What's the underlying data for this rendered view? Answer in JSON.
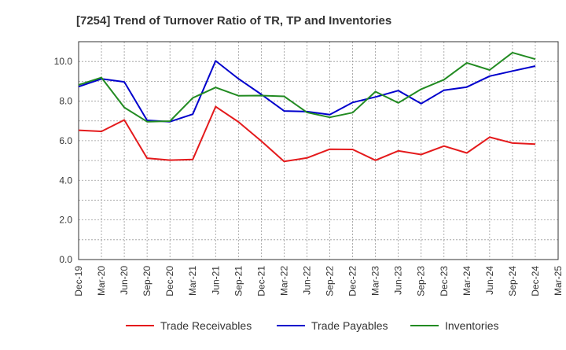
{
  "chart_data": {
    "type": "line",
    "title": "[7254]  Trend of Turnover Ratio of TR, TP and Inventories",
    "xlabel": "",
    "ylabel": "",
    "ylim": [
      0,
      11
    ],
    "yticks": [
      "0.0",
      "2.0",
      "4.0",
      "6.0",
      "8.0",
      "10.0"
    ],
    "grid": true,
    "legend_position": "bottom",
    "x_tick_labels": [
      "Dec-19",
      "Mar-20",
      "Jun-20",
      "Sep-20",
      "Dec-20",
      "Mar-21",
      "Jun-21",
      "Sep-21",
      "Dec-21",
      "Mar-22",
      "Jun-22",
      "Sep-22",
      "Dec-22",
      "Mar-23",
      "Jun-23",
      "Sep-23",
      "Dec-23",
      "Mar-24",
      "Jun-24",
      "Sep-24",
      "Dec-24",
      "Mar-25"
    ],
    "x": [
      "Dec-19",
      "Mar-20",
      "Jun-20",
      "Sep-20",
      "Dec-20",
      "Mar-21",
      "Jun-21",
      "Sep-21",
      "Dec-21",
      "Mar-22",
      "Jun-22",
      "Sep-22",
      "Dec-22",
      "Mar-23",
      "Jun-23",
      "Sep-23",
      "Dec-23",
      "Mar-24",
      "Jun-24",
      "Sep-24",
      "Dec-24"
    ],
    "series": [
      {
        "name": "Trade Receivables",
        "color": "#e41a1c",
        "values": [
          6.53,
          6.47,
          7.05,
          5.12,
          5.02,
          5.05,
          7.72,
          6.95,
          5.98,
          4.95,
          5.13,
          5.57,
          5.56,
          5.01,
          5.49,
          5.3,
          5.73,
          5.38,
          6.18,
          5.88,
          5.83
        ]
      },
      {
        "name": "Trade Payables",
        "color": "#0000cc",
        "values": [
          8.73,
          9.12,
          8.97,
          7.03,
          6.96,
          7.34,
          10.03,
          9.13,
          8.34,
          7.5,
          7.47,
          7.32,
          7.93,
          8.21,
          8.53,
          7.87,
          8.55,
          8.71,
          9.26,
          9.52,
          9.77
        ]
      },
      {
        "name": "Inventories",
        "color": "#228b22",
        "values": [
          8.82,
          9.19,
          7.68,
          6.96,
          6.99,
          8.16,
          8.69,
          8.27,
          8.28,
          8.24,
          7.43,
          7.18,
          7.42,
          8.48,
          7.91,
          8.6,
          9.08,
          9.93,
          9.57,
          10.45,
          10.12
        ]
      }
    ]
  }
}
